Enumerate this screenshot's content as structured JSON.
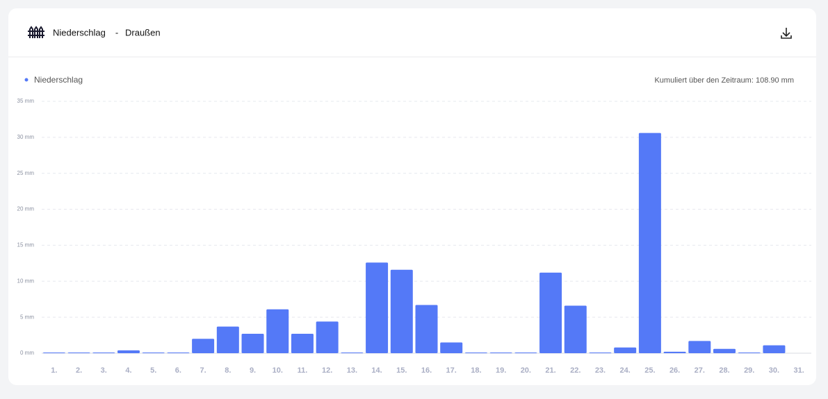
{
  "header": {
    "title": "Niederschlag",
    "separator": "-",
    "location": "Draußen"
  },
  "chart_data": {
    "type": "bar",
    "annotation": "Kumuliert über den Zeitraum: 108.90 mm",
    "categories": [
      "1.",
      "2.",
      "3.",
      "4.",
      "5.",
      "6.",
      "7.",
      "8.",
      "9.",
      "10.",
      "11.",
      "12.",
      "13.",
      "14.",
      "15.",
      "16.",
      "17.",
      "18.",
      "19.",
      "20.",
      "21.",
      "22.",
      "23.",
      "24.",
      "25.",
      "26.",
      "27.",
      "28.",
      "29.",
      "30.",
      "31."
    ],
    "series": [
      {
        "name": "Niederschlag",
        "color": "#5479f7",
        "values": [
          0.1,
          0.1,
          0.1,
          0.4,
          0.1,
          0.1,
          2.0,
          3.7,
          2.7,
          6.1,
          2.7,
          4.4,
          0.1,
          12.6,
          11.6,
          6.7,
          1.5,
          0.1,
          0.1,
          0.1,
          11.2,
          6.6,
          0.1,
          0.8,
          30.6,
          0.2,
          1.7,
          0.6,
          0.1,
          1.1,
          null
        ]
      }
    ],
    "ylim": [
      0,
      35
    ],
    "yticks": [
      {
        "value": 0,
        "label": "0 mm"
      },
      {
        "value": 5,
        "label": "5 mm"
      },
      {
        "value": 10,
        "label": "10 mm"
      },
      {
        "value": 15,
        "label": "15 mm"
      },
      {
        "value": 20,
        "label": "20 mm"
      },
      {
        "value": 25,
        "label": "25 mm"
      },
      {
        "value": 30,
        "label": "30 mm"
      },
      {
        "value": 35,
        "label": "35 mm"
      }
    ],
    "grid": true
  }
}
